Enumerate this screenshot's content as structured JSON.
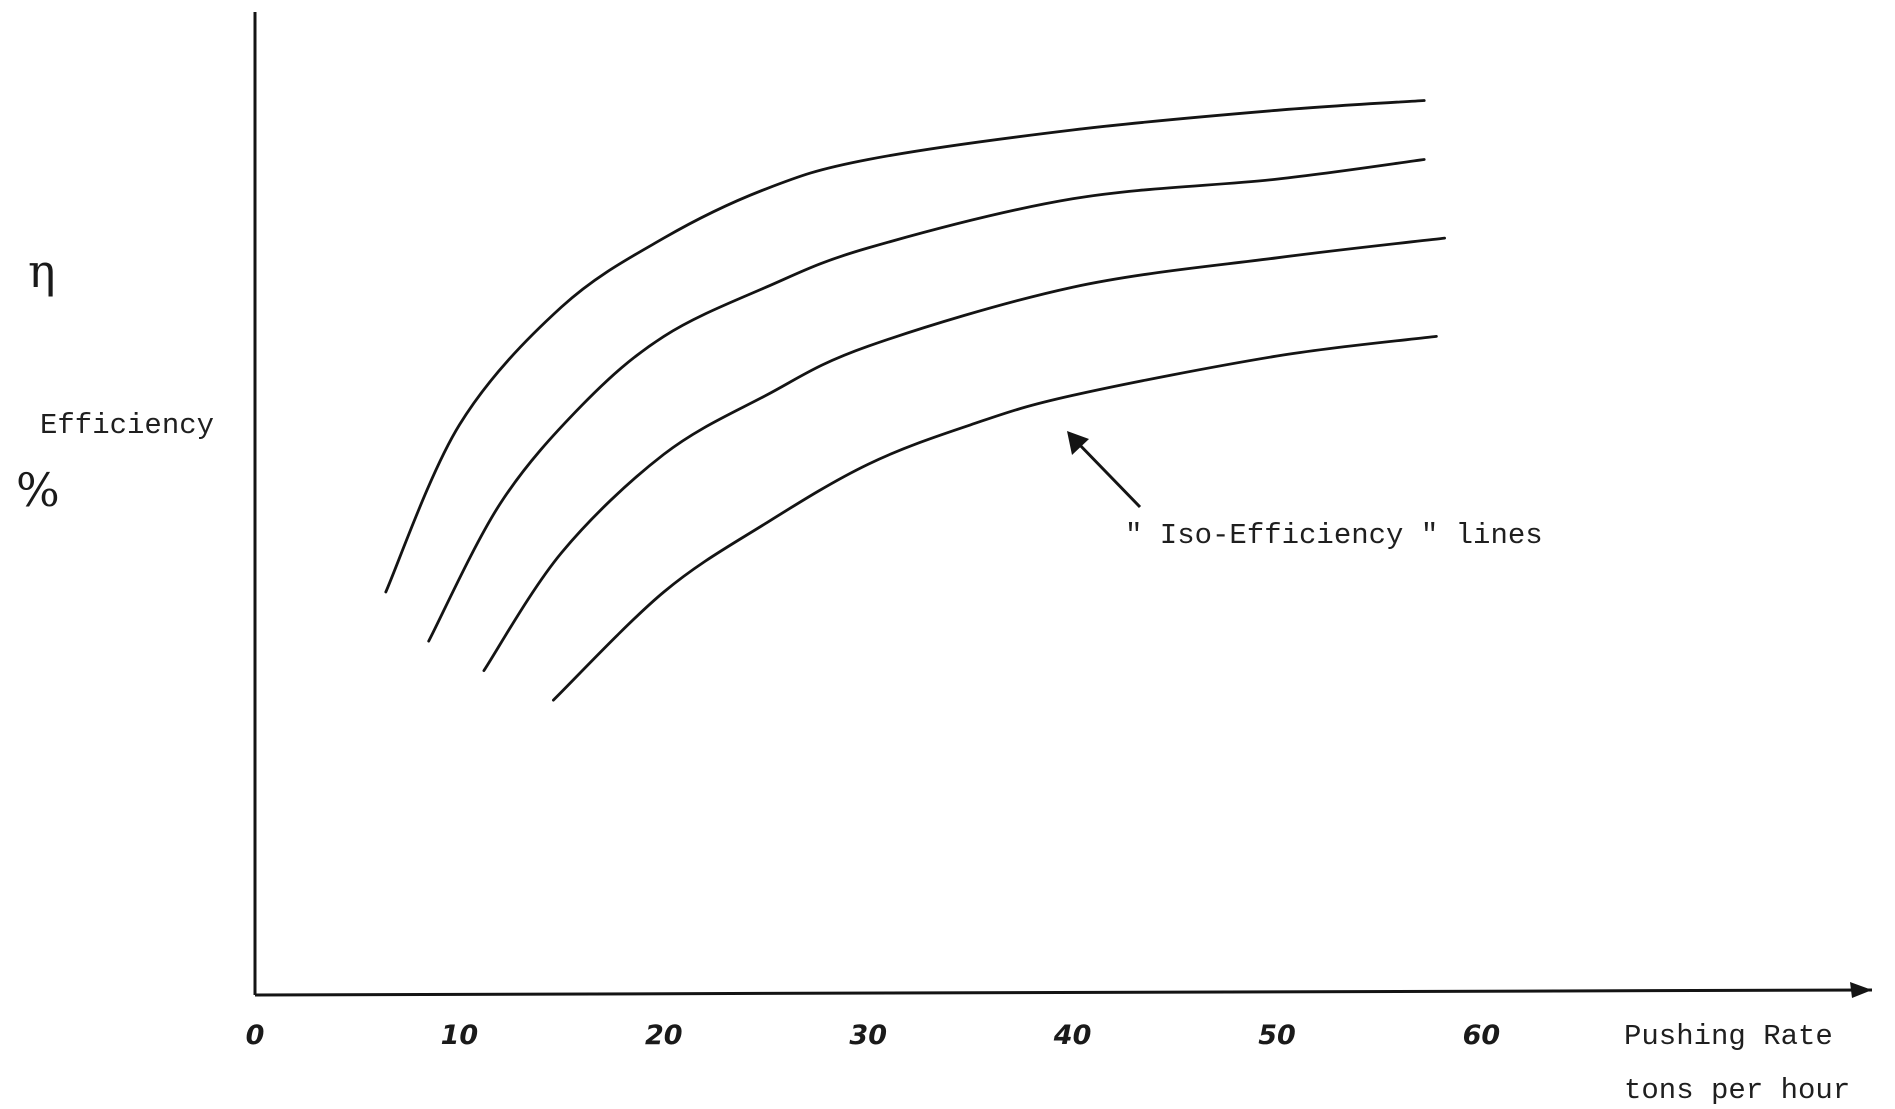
{
  "chart_data": {
    "type": "line",
    "title": "",
    "xlabel": "Pushing Rate",
    "xlabel_unit": "tons per hour",
    "ylabel": "Efficiency",
    "ylabel_symbol": "η",
    "ylabel_unit": "%",
    "xlim": [
      0,
      75
    ],
    "ylim": [
      0,
      1
    ],
    "x_ticks": [
      0,
      10,
      20,
      30,
      40,
      50,
      60
    ],
    "x_tick_labels": [
      "0",
      "10",
      "20",
      "30",
      "40",
      "50",
      "60"
    ],
    "y_ticks": [],
    "grid": false,
    "annotation": "\" Iso-Efficiency \" lines",
    "series": [
      {
        "x": [
          6.4,
          10,
          15,
          20,
          25,
          30,
          40,
          50,
          57.2
        ],
        "y": [
          0.41,
          0.58,
          0.7,
          0.77,
          0.82,
          0.85,
          0.88,
          0.9,
          0.91
        ]
      },
      {
        "x": [
          8.5,
          12,
          16,
          20,
          25,
          30,
          40,
          50,
          57.2
        ],
        "y": [
          0.36,
          0.5,
          0.6,
          0.67,
          0.72,
          0.76,
          0.81,
          0.83,
          0.85
        ]
      },
      {
        "x": [
          11.2,
          15,
          20,
          25,
          30,
          40,
          50,
          58.2
        ],
        "y": [
          0.33,
          0.45,
          0.55,
          0.61,
          0.66,
          0.72,
          0.75,
          0.77
        ]
      },
      {
        "x": [
          14.6,
          20,
          25,
          30,
          35,
          40,
          50,
          57.8
        ],
        "y": [
          0.3,
          0.41,
          0.48,
          0.54,
          0.58,
          0.61,
          0.65,
          0.67
        ]
      }
    ]
  }
}
